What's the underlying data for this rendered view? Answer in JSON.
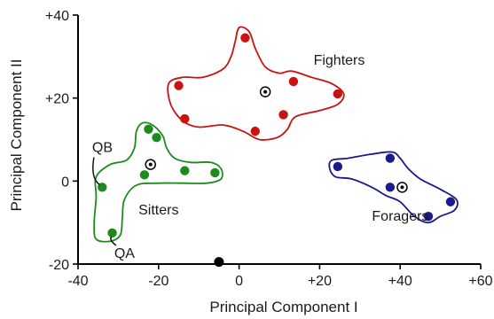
{
  "chart_data": {
    "type": "scatter",
    "xlabel": "Principal Component I",
    "ylabel": "Principal Component II",
    "xlim": [
      -40,
      60
    ],
    "ylim": [
      -20,
      40
    ],
    "xticks": [
      -40,
      -20,
      0,
      20,
      40,
      60
    ],
    "xtick_labels": [
      "-40",
      "-20",
      "0",
      "+20",
      "+40",
      "+60"
    ],
    "yticks": [
      -20,
      0,
      20,
      40
    ],
    "ytick_labels": [
      "-20",
      "0",
      "+20",
      "+40"
    ],
    "grid": false,
    "series": [
      {
        "name": "Fighters",
        "color": "#cc1111",
        "points": [
          [
            1.5,
            34.5
          ],
          [
            -15,
            23
          ],
          [
            13.5,
            24
          ],
          [
            24.5,
            21
          ],
          [
            -13.5,
            15
          ],
          [
            11,
            16
          ],
          [
            4,
            12
          ]
        ],
        "centroid": [
          6.5,
          21.5
        ],
        "hull": [
          [
            0,
            37
          ],
          [
            2.5,
            36
          ],
          [
            4,
            32
          ],
          [
            6.5,
            27.5
          ],
          [
            10,
            26
          ],
          [
            13,
            26.5
          ],
          [
            18,
            25
          ],
          [
            23,
            23.5
          ],
          [
            26,
            21
          ],
          [
            24.5,
            18.5
          ],
          [
            20,
            17
          ],
          [
            14,
            15.5
          ],
          [
            12,
            12.5
          ],
          [
            9.5,
            10.5
          ],
          [
            5,
            10
          ],
          [
            1,
            12
          ],
          [
            -4,
            13.5
          ],
          [
            -10,
            13
          ],
          [
            -14,
            14.5
          ],
          [
            -17,
            18.5
          ],
          [
            -17.5,
            23.5
          ],
          [
            -14,
            25
          ],
          [
            -9,
            25
          ],
          [
            -4,
            27
          ],
          [
            -2,
            30
          ],
          [
            -1,
            33.5
          ]
        ]
      },
      {
        "name": "Sitters",
        "color": "#1e8a1e",
        "points": [
          [
            -22.5,
            12.5
          ],
          [
            -20.5,
            10.5
          ],
          [
            -23.5,
            1.5
          ],
          [
            -13.5,
            2.5
          ],
          [
            -6,
            2
          ],
          [
            -34,
            -1.5
          ],
          [
            -31.5,
            -12.5
          ]
        ],
        "centroid": [
          -22,
          4
        ],
        "hull": [
          [
            -24,
            14
          ],
          [
            -21.5,
            13.5
          ],
          [
            -19,
            11
          ],
          [
            -18,
            8
          ],
          [
            -16,
            5.5
          ],
          [
            -12,
            4.5
          ],
          [
            -7,
            4.5
          ],
          [
            -4.5,
            3
          ],
          [
            -4.5,
            0.5
          ],
          [
            -8,
            -0.5
          ],
          [
            -14,
            -0.5
          ],
          [
            -20,
            -0.5
          ],
          [
            -25.5,
            -1
          ],
          [
            -28.5,
            -4.5
          ],
          [
            -29,
            -9
          ],
          [
            -29.5,
            -13
          ],
          [
            -32,
            -14.5
          ],
          [
            -35.5,
            -14
          ],
          [
            -36,
            -10
          ],
          [
            -35.5,
            -4
          ],
          [
            -35.5,
            1
          ],
          [
            -32,
            4
          ],
          [
            -28,
            5
          ],
          [
            -26,
            8
          ],
          [
            -25.5,
            12
          ]
        ]
      },
      {
        "name": "Foragers",
        "color": "#1a1a8c",
        "points": [
          [
            24.5,
            3.5
          ],
          [
            37.5,
            5.5
          ],
          [
            37.5,
            -1.5
          ],
          [
            47,
            -8.5
          ],
          [
            52.5,
            -5
          ]
        ],
        "centroid": [
          40.5,
          -1.5
        ],
        "hull": [
          [
            23,
            5
          ],
          [
            27,
            5.5
          ],
          [
            33,
            6.5
          ],
          [
            38,
            7
          ],
          [
            40,
            5.5
          ],
          [
            42,
            3
          ],
          [
            45,
            0.5
          ],
          [
            50,
            -2
          ],
          [
            54,
            -4.5
          ],
          [
            53.5,
            -7
          ],
          [
            50,
            -8.5
          ],
          [
            47,
            -10
          ],
          [
            43.5,
            -8.5
          ],
          [
            40,
            -5
          ],
          [
            36.5,
            -3.5
          ],
          [
            33,
            -1.5
          ],
          [
            28,
            0.5
          ],
          [
            24,
            1
          ],
          [
            22.5,
            3
          ]
        ]
      }
    ],
    "extra_points": [
      {
        "x": -5,
        "y": -19.5,
        "color": "#000000"
      }
    ],
    "annotations": [
      {
        "text": "Fighters",
        "x": 18.5,
        "y": 28,
        "series": "Fighters"
      },
      {
        "text": "Sitters",
        "x": -25,
        "y": -8,
        "series": "Sitters"
      },
      {
        "text": "Foragers",
        "x": 33,
        "y": -9.5,
        "series": "Foragers"
      },
      {
        "text": "QB",
        "x": -36.5,
        "y": 7,
        "target": [
          -34,
          -1.5
        ]
      },
      {
        "text": "QA",
        "x": -31,
        "y": -18.5,
        "target": [
          -31.5,
          -12.5
        ]
      }
    ]
  }
}
